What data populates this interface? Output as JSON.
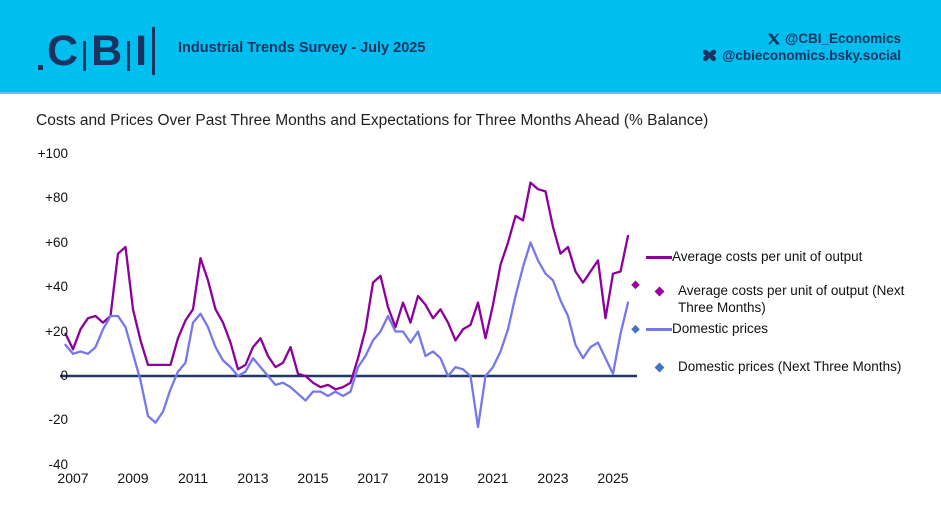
{
  "header": {
    "logo": {
      "letters": [
        "C",
        "B",
        "I"
      ]
    },
    "survey_title": "Industrial Trends Survey - July 2025",
    "social": {
      "x_handle": "@CBI_Economics",
      "bluesky_handle": "@cbieconomics.bsky.social"
    },
    "colors": {
      "banner_bg": "#00BFEF",
      "navy": "#1A3360"
    }
  },
  "chart_data": {
    "type": "line",
    "title": "Costs and Prices Over Past Three Months and Expectations for Three Months Ahead (% Balance)",
    "ylabel": "% balance",
    "ylim": [
      -40,
      100
    ],
    "grid": false,
    "legend_position": "right",
    "x_start": 2006.75,
    "x_step": 0.25,
    "x_tick_labels": [
      "2007",
      "2009",
      "2011",
      "2013",
      "2015",
      "2017",
      "2019",
      "2021",
      "2023",
      "2025"
    ],
    "y_ticks": [
      {
        "label": "+100",
        "value": 100
      },
      {
        "label": "+80",
        "value": 80
      },
      {
        "label": "+60",
        "value": 60
      },
      {
        "label": "+40",
        "value": 40
      },
      {
        "label": "+20",
        "value": 20
      },
      {
        "label": "0",
        "value": 0
      },
      {
        "label": "-20",
        "value": -20
      },
      {
        "label": "-40",
        "value": -40
      }
    ],
    "colors": {
      "axis_line": "#1F3864"
    },
    "series": [
      {
        "id": "costs",
        "name": "Average costs per unit of output",
        "type": "line",
        "color": "#8C009C",
        "values": [
          19,
          12,
          21,
          26,
          27,
          24,
          27,
          55,
          58,
          30,
          16,
          5,
          5,
          5,
          5,
          17,
          25,
          30,
          53,
          43,
          30,
          24,
          15,
          3,
          5,
          13,
          17,
          9,
          4,
          6,
          13,
          1,
          0,
          -3,
          -5,
          -4,
          -6,
          -5,
          -3,
          8,
          21,
          42,
          45,
          31,
          22,
          33,
          24,
          36,
          32,
          26,
          30,
          24,
          16,
          21,
          23,
          33,
          17,
          32,
          50,
          60,
          72,
          70,
          87,
          84,
          83,
          67,
          55,
          58,
          47,
          42,
          47,
          52,
          26,
          46,
          47,
          63
        ]
      },
      {
        "id": "costs_next",
        "name": "Average costs per unit of output (Next Three Months)",
        "type": "point",
        "marker": "diamond",
        "color": "#9C009C",
        "x": 2025.75,
        "value": 41
      },
      {
        "id": "prices",
        "name": "Domestic prices",
        "type": "line",
        "color": "#7678EA",
        "values": [
          14,
          10,
          11,
          10,
          13,
          21,
          27,
          27,
          22,
          10,
          -2,
          -18,
          -21,
          -16,
          -6,
          2,
          6,
          24,
          28,
          22,
          13,
          7,
          4,
          0,
          2,
          8,
          4,
          0,
          -4,
          -3,
          -5,
          -8,
          -11,
          -7,
          -7,
          -9,
          -7,
          -9,
          -7,
          4,
          9,
          16,
          20,
          27,
          20,
          20,
          15,
          20,
          9,
          11,
          8,
          0,
          4,
          3,
          0,
          -23,
          0,
          4,
          11,
          21,
          36,
          49,
          60,
          52,
          46,
          43,
          34,
          27,
          14,
          8,
          13,
          15,
          8,
          1,
          19,
          33
        ]
      },
      {
        "id": "prices_next",
        "name": "Domestic prices (Next Three Months)",
        "type": "point",
        "marker": "diamond",
        "color": "#4472C4",
        "x": 2025.75,
        "value": 21
      }
    ]
  }
}
